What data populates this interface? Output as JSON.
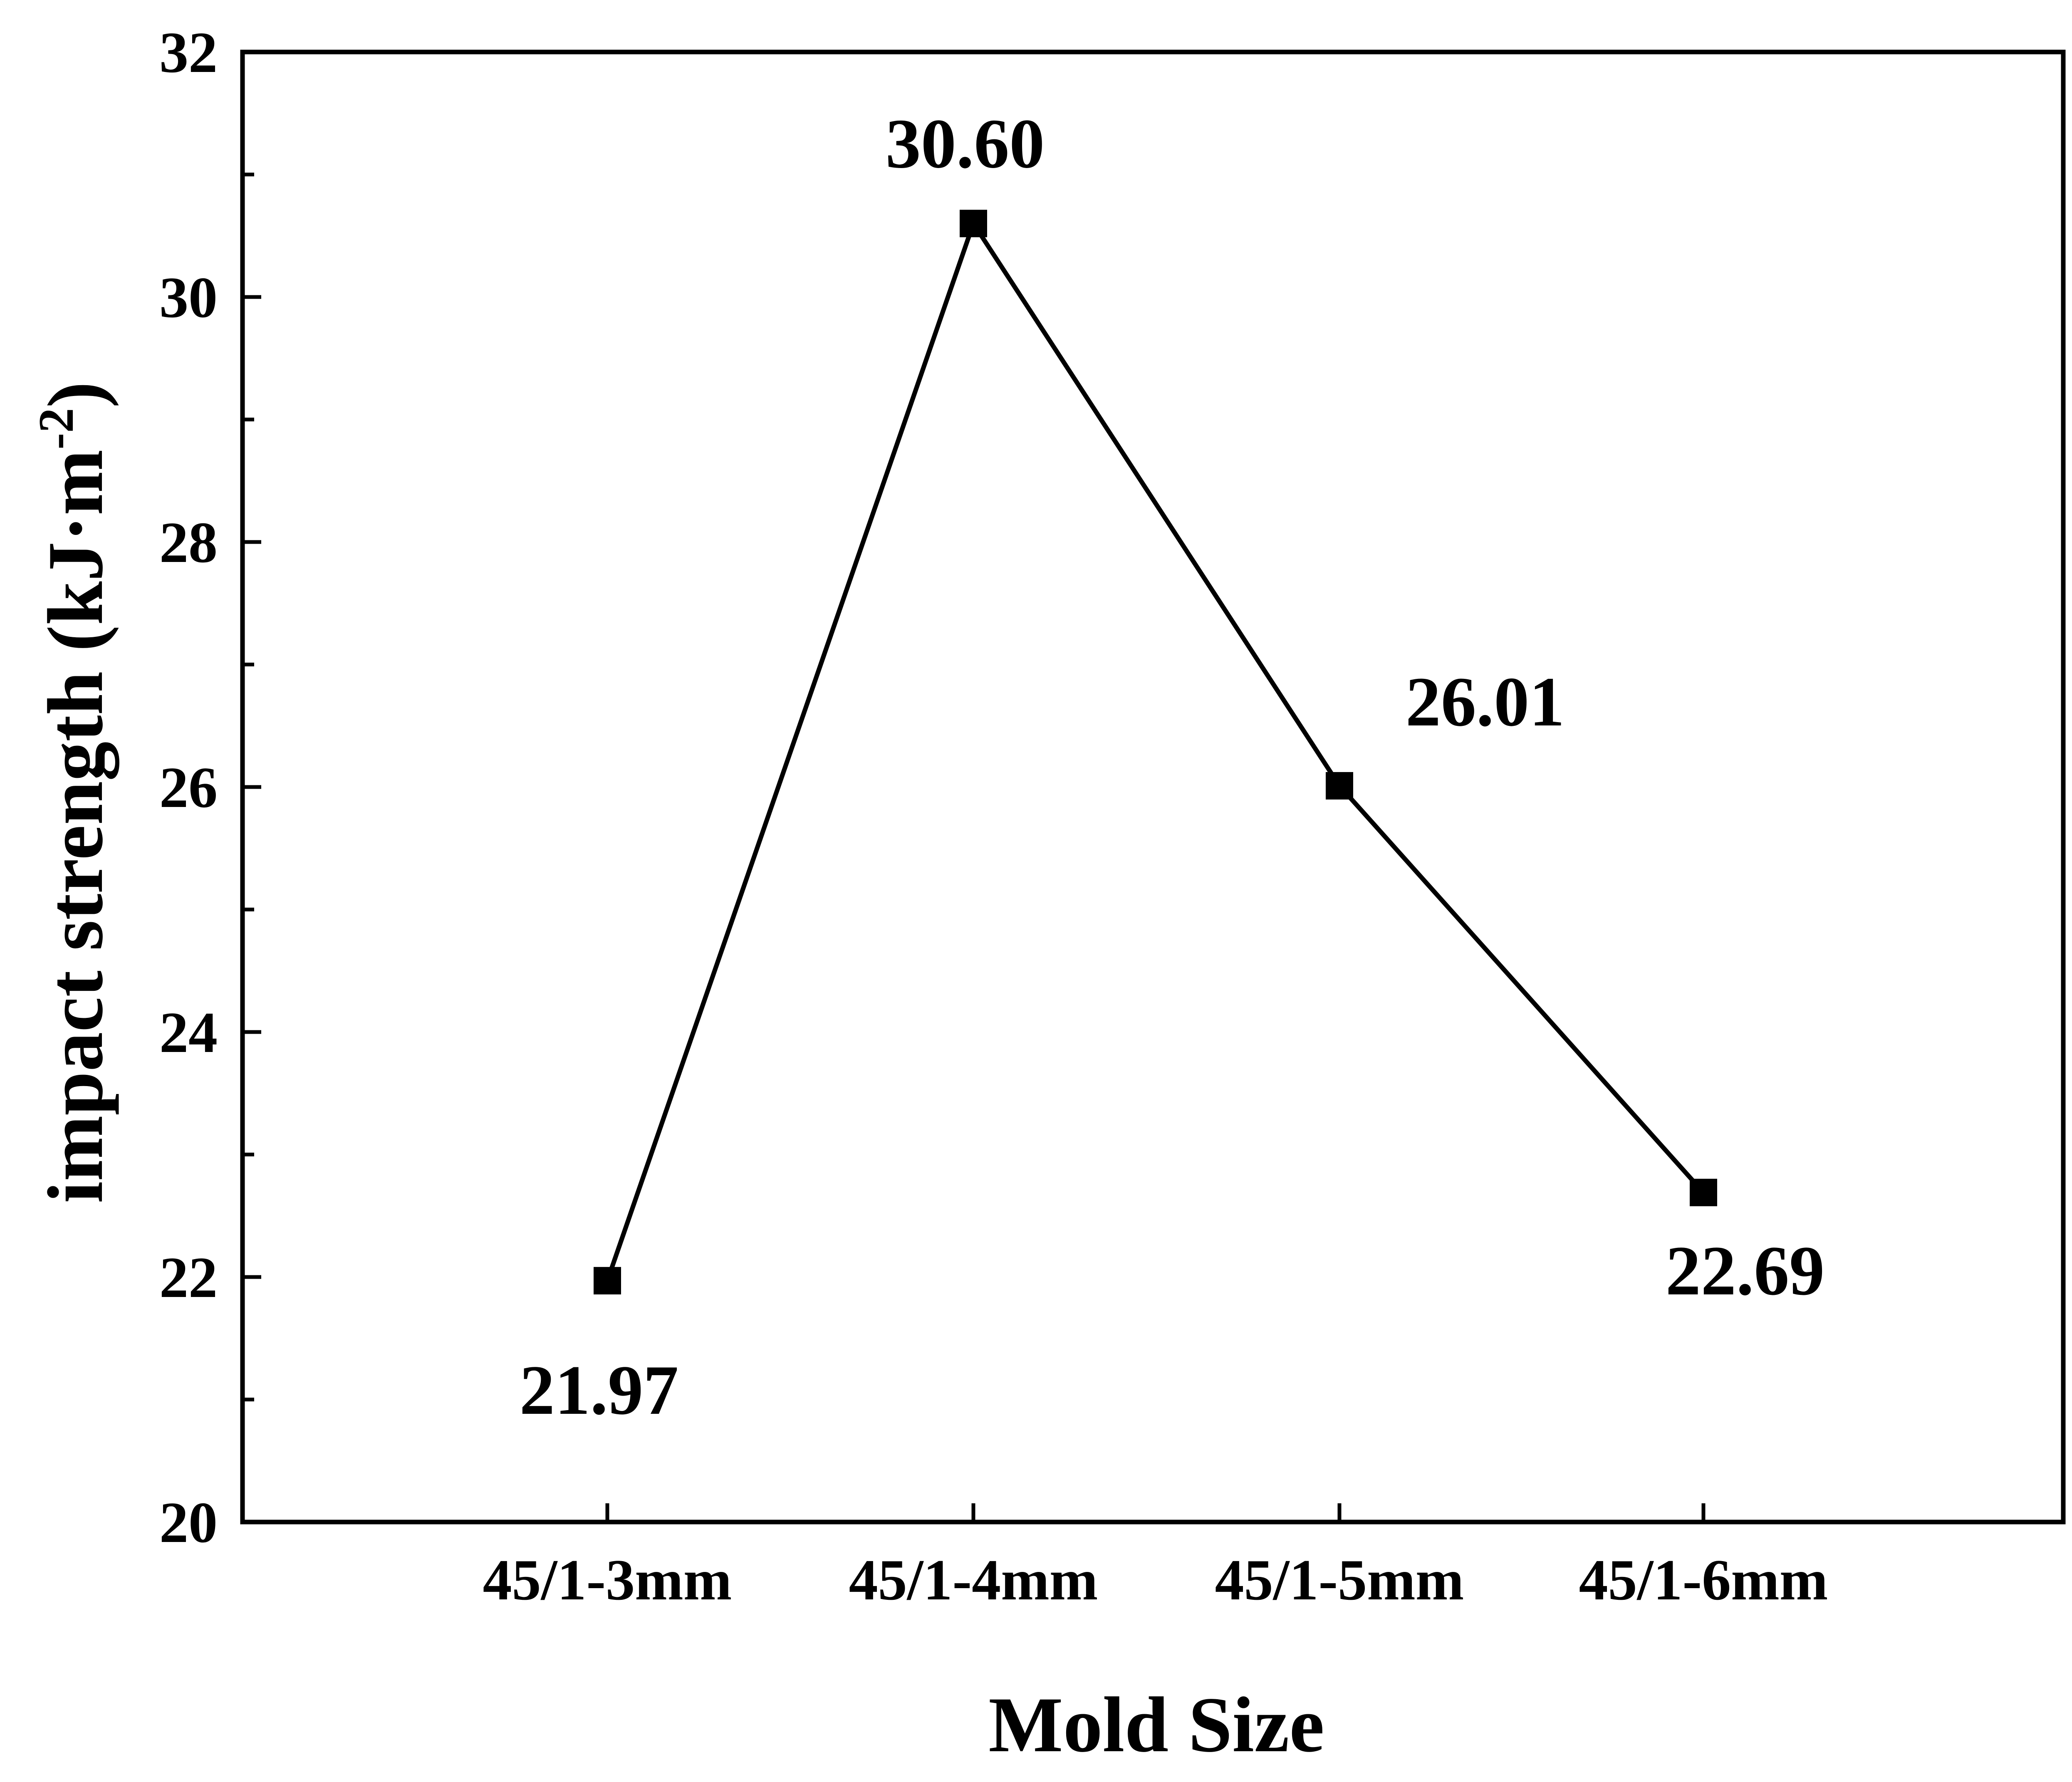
{
  "chart_data": {
    "type": "line",
    "categories": [
      "45/1-3mm",
      "45/1-4mm",
      "45/1-5mm",
      "45/1-6mm"
    ],
    "series": [
      {
        "values": [
          21.97,
          30.6,
          26.01,
          22.69
        ],
        "marker": "square",
        "color": "#000000"
      }
    ],
    "data_labels": [
      "21.97",
      "30.60",
      "26.01",
      "22.69"
    ],
    "xlabel": "Mold Size",
    "ylabel": "impact strength (kJ·m-2)",
    "ylabel_parts": {
      "main": "impact strength (kJ·m",
      "sup": "-2",
      "close": ")"
    },
    "ylim": [
      20,
      32
    ],
    "yticks": [
      20,
      22,
      24,
      26,
      28,
      30,
      32
    ],
    "grid": false,
    "legend": "none"
  }
}
